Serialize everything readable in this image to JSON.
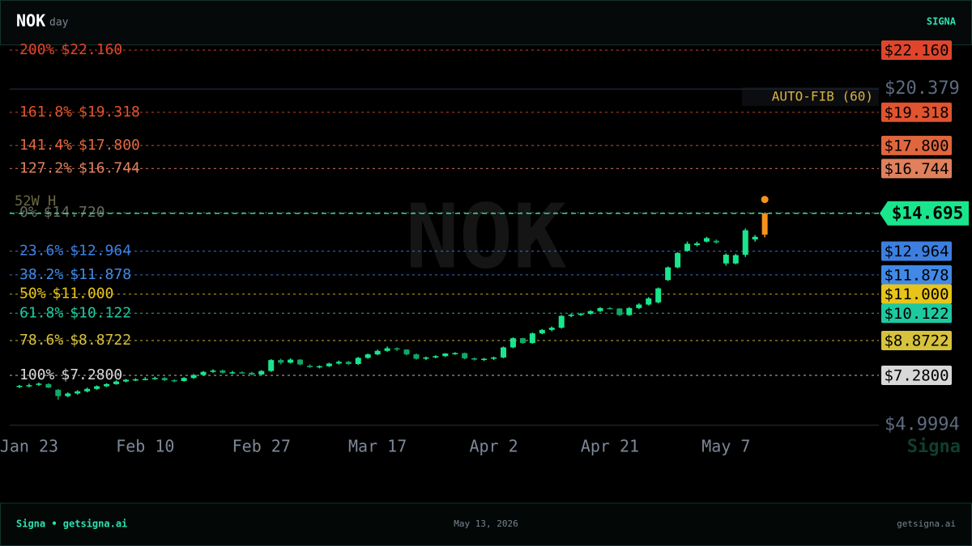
{
  "header": {
    "ticker": "NOK",
    "interval": "day",
    "brand": "SIGNA"
  },
  "chart_data": {
    "type": "candlestick",
    "categories": [
      null,
      "Jan 23",
      null,
      null,
      null,
      null,
      null,
      null,
      null,
      null,
      null,
      null,
      null,
      "Feb 10",
      null,
      null,
      null,
      null,
      null,
      null,
      null,
      null,
      null,
      null,
      null,
      "Feb 27",
      null,
      null,
      null,
      null,
      null,
      null,
      null,
      null,
      null,
      null,
      null,
      "Mar 17",
      null,
      null,
      null,
      null,
      null,
      null,
      null,
      null,
      null,
      null,
      null,
      "Apr 2",
      null,
      null,
      null,
      null,
      null,
      null,
      null,
      null,
      null,
      null,
      null,
      "Apr 21",
      null,
      null,
      null,
      null,
      null,
      null,
      null,
      null,
      null,
      null,
      null,
      "May 7",
      null,
      null,
      null,
      null
    ],
    "open": [
      6.76,
      6.8,
      6.85,
      6.88,
      6.62,
      6.33,
      6.45,
      6.55,
      6.66,
      6.78,
      6.88,
      7.0,
      7.08,
      7.1,
      7.12,
      7.16,
      7.06,
      7.02,
      7.16,
      7.3,
      7.44,
      7.5,
      7.4,
      7.42,
      7.4,
      7.32,
      7.48,
      7.98,
      7.86,
      8.0,
      7.72,
      7.66,
      7.7,
      7.82,
      7.9,
      7.8,
      8.08,
      8.24,
      8.4,
      8.52,
      8.46,
      8.24,
      8.04,
      8.1,
      8.16,
      8.28,
      8.3,
      8.06,
      8.0,
      8.04,
      8.1,
      8.56,
      8.98,
      8.76,
      9.2,
      9.36,
      9.46,
      10.0,
      10.06,
      10.1,
      10.22,
      10.36,
      10.34,
      10.04,
      10.36,
      10.52,
      10.62,
      11.64,
      12.22,
      12.98,
      13.24,
      13.4,
      13.44,
      12.4,
      12.4,
      12.8,
      13.5,
      13.72
    ],
    "high": [
      6.84,
      6.9,
      6.95,
      6.92,
      6.66,
      6.5,
      6.6,
      6.72,
      6.82,
      6.92,
      7.05,
      7.12,
      7.15,
      7.2,
      7.22,
      7.2,
      7.1,
      7.2,
      7.34,
      7.48,
      7.56,
      7.54,
      7.48,
      7.46,
      7.44,
      7.52,
      8.02,
      8.04,
      8.06,
      8.02,
      7.78,
      7.74,
      7.86,
      7.96,
      7.94,
      8.12,
      8.28,
      8.46,
      8.6,
      8.56,
      8.48,
      8.28,
      8.14,
      8.2,
      8.3,
      8.34,
      8.32,
      8.1,
      8.08,
      8.14,
      8.6,
      9.02,
      9.0,
      9.24,
      9.4,
      9.52,
      10.04,
      10.1,
      10.14,
      10.26,
      10.4,
      10.4,
      10.36,
      10.4,
      10.58,
      10.86,
      11.3,
      12.26,
      12.92,
      13.4,
      13.4,
      13.62,
      13.5,
      12.86,
      12.84,
      14.0,
      13.7,
      14.7
    ],
    "low": [
      6.7,
      6.74,
      6.8,
      6.7,
      6.17,
      6.28,
      6.4,
      6.5,
      6.62,
      6.74,
      6.85,
      6.96,
      7.02,
      7.05,
      7.08,
      7.02,
      6.96,
      7.0,
      7.12,
      7.26,
      7.4,
      7.36,
      7.34,
      7.36,
      7.28,
      7.3,
      7.44,
      7.78,
      7.82,
      7.74,
      7.62,
      7.6,
      7.66,
      7.78,
      7.76,
      7.76,
      8.04,
      8.2,
      8.36,
      8.4,
      8.2,
      8.0,
      7.98,
      8.06,
      8.12,
      8.22,
      8.02,
      7.96,
      7.94,
      7.98,
      8.06,
      8.52,
      8.72,
      8.72,
      9.16,
      9.3,
      9.42,
      9.94,
      10.0,
      10.06,
      10.18,
      10.3,
      10.0,
      10.0,
      10.32,
      10.48,
      10.58,
      11.6,
      12.18,
      12.94,
      13.18,
      13.36,
      13.3,
      12.3,
      12.36,
      12.7,
      13.4,
      13.6
    ],
    "close": [
      6.8,
      6.83,
      6.9,
      6.72,
      6.33,
      6.45,
      6.55,
      6.66,
      6.78,
      6.88,
      7.0,
      7.08,
      7.1,
      7.12,
      7.16,
      7.06,
      7.02,
      7.16,
      7.3,
      7.44,
      7.5,
      7.4,
      7.42,
      7.4,
      7.32,
      7.48,
      7.98,
      7.86,
      8.0,
      7.78,
      7.66,
      7.7,
      7.82,
      7.9,
      7.8,
      8.08,
      8.24,
      8.4,
      8.52,
      8.46,
      8.24,
      8.04,
      8.1,
      8.16,
      8.28,
      8.3,
      8.06,
      8.0,
      8.04,
      8.1,
      8.56,
      8.98,
      8.76,
      9.2,
      9.36,
      9.46,
      10.0,
      10.06,
      10.1,
      10.22,
      10.36,
      10.34,
      10.04,
      10.36,
      10.52,
      10.8,
      11.26,
      12.22,
      12.88,
      13.3,
      13.32,
      13.56,
      13.36,
      12.8,
      12.78,
      13.92,
      13.62,
      14.695
    ],
    "up_color": "#19e68c",
    "down_color": "#10a866",
    "live_color": "#f5921e",
    "ylim": [
      4.95,
      22.42
    ],
    "yticks": [
      {
        "value": 4.9994,
        "label": "$4.9994"
      },
      {
        "value": 20.379,
        "label": "$20.379"
      }
    ],
    "last_price": {
      "value": 14.695,
      "label": "$14.695",
      "color": "#19e68c"
    },
    "fib": {
      "title": "AUTO-FIB (60)",
      "levels": [
        {
          "pct": "200%",
          "value": 22.16,
          "label": "$22.160",
          "color": "#e0452c",
          "badge": true
        },
        {
          "pct": "161.8%",
          "value": 19.318,
          "label": "$19.318",
          "color": "#e2532f",
          "badge": true
        },
        {
          "pct": "141.4%",
          "value": 17.8,
          "label": "$17.800",
          "color": "#e0663e",
          "badge": true
        },
        {
          "pct": "127.2%",
          "value": 16.744,
          "label": "$16.744",
          "color": "#e0805c",
          "badge": true
        },
        {
          "pct": "0%",
          "value": 14.72,
          "label": "$14.720",
          "color": "#6a6a60",
          "badge": false
        },
        {
          "pct": "23.6%",
          "value": 12.964,
          "label": "$12.964",
          "color": "#3d7fe0",
          "badge": true
        },
        {
          "pct": "38.2%",
          "value": 11.878,
          "label": "$11.878",
          "color": "#4189e6",
          "badge": true
        },
        {
          "pct": "50%",
          "value": 11.0,
          "label": "$11.000",
          "color": "#e8c41a",
          "badge": true
        },
        {
          "pct": "61.8%",
          "value": 10.122,
          "label": "$10.122",
          "color": "#1fc9a0",
          "badge": true
        },
        {
          "pct": "78.6%",
          "value": 8.8722,
          "label": "$8.8722",
          "color": "#d6c23c",
          "badge": true
        },
        {
          "pct": "100%",
          "value": 7.28,
          "label": "$7.2800",
          "color": "#d8d8d8",
          "badge": true
        }
      ]
    },
    "annotation": "52W H",
    "watermark": "NOK",
    "brand_watermark": "Signa"
  },
  "footer": {
    "left": "Signa • getsigna.ai",
    "date": "May 13, 2026",
    "right": "getsigna.ai"
  }
}
